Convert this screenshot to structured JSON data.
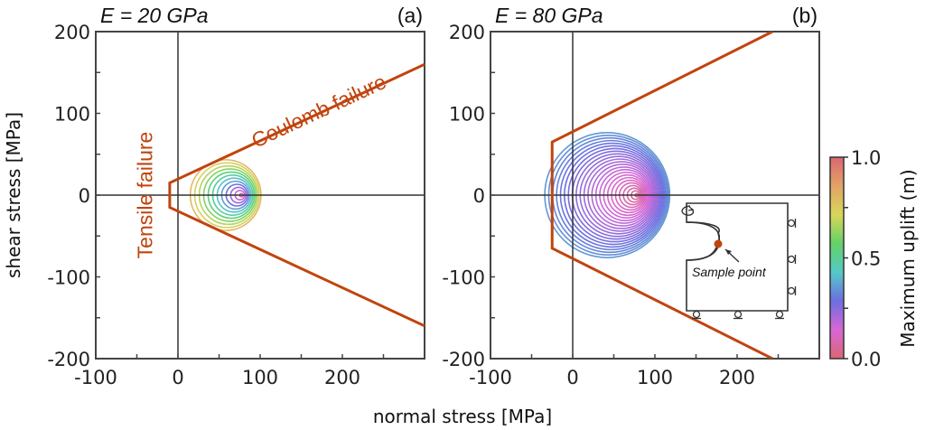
{
  "chart_data": [
    {
      "type": "line",
      "panel_label": "(a)",
      "title": "E = 20 GPa",
      "xlabel": "normal stress [MPa]",
      "ylabel": "shear stress [MPa]",
      "xlim": [
        -100,
        300
      ],
      "ylim": [
        -200,
        200
      ],
      "xticks": [
        -100,
        0,
        100,
        200
      ],
      "yticks": [
        200,
        100,
        0,
        -100,
        -200
      ],
      "xtick_labels": [
        "-100",
        "0",
        "100",
        "200"
      ],
      "ytick_labels": [
        "200",
        "100",
        "0",
        "-100",
        "-200"
      ],
      "envelope": {
        "color": "#c1440e",
        "points": [
          [
            300,
            160
          ],
          [
            -10,
            15
          ],
          [
            -10,
            -15
          ],
          [
            300,
            -160
          ]
        ]
      },
      "annotations": [
        {
          "text": "Coulomb failure",
          "x": 175,
          "y": 95,
          "rotation": -25
        },
        {
          "text": "Tensile failure",
          "x": -40,
          "y": 0,
          "rotation": -90
        }
      ],
      "mohr_circles": {
        "count": 12,
        "center_range": [
          77,
          58
        ],
        "radius_range": [
          2,
          43
        ],
        "uplift_range": [
          0.1,
          0.8
        ]
      }
    },
    {
      "type": "line",
      "panel_label": "(b)",
      "title": "E = 80 GPa",
      "xlabel": "normal stress [MPa]",
      "ylabel": "shear stress [MPa]",
      "xlim": [
        -100,
        300
      ],
      "ylim": [
        -200,
        200
      ],
      "xticks": [
        -100,
        0,
        100,
        200
      ],
      "yticks": [
        200,
        100,
        0,
        -100,
        -200
      ],
      "xtick_labels": [
        "-100",
        "0",
        "100",
        "200"
      ],
      "ytick_labels": [
        "200",
        "100",
        "0",
        "-100",
        "-200"
      ],
      "envelope": {
        "color": "#c1440e",
        "points": [
          [
            243,
            200
          ],
          [
            -25,
            65
          ],
          [
            -25,
            -65
          ],
          [
            243,
            -200
          ]
        ]
      },
      "mohr_circles": {
        "count": 24,
        "center_range": [
          78,
          42
        ],
        "radius_range": [
          2,
          76
        ],
        "uplift_range": [
          0.05,
          0.35
        ]
      },
      "inset": {
        "label": "Sample point"
      }
    }
  ],
  "colorbar": {
    "label": "Maximum uplift (m)",
    "range": [
      0.0,
      1.0
    ],
    "tick_labels": [
      "1.0",
      "0.5",
      "0.0"
    ],
    "tick_values": [
      1.0,
      0.5,
      0.0
    ],
    "minor_ticks": [
      0.75,
      0.25
    ],
    "colormap": [
      "#dc6672",
      "#d867d6",
      "#6c6ee0",
      "#55c9c8",
      "#63d266",
      "#d8d65a",
      "#e2a366",
      "#dc6672"
    ]
  },
  "shared_xlabel": "normal stress [MPa]"
}
